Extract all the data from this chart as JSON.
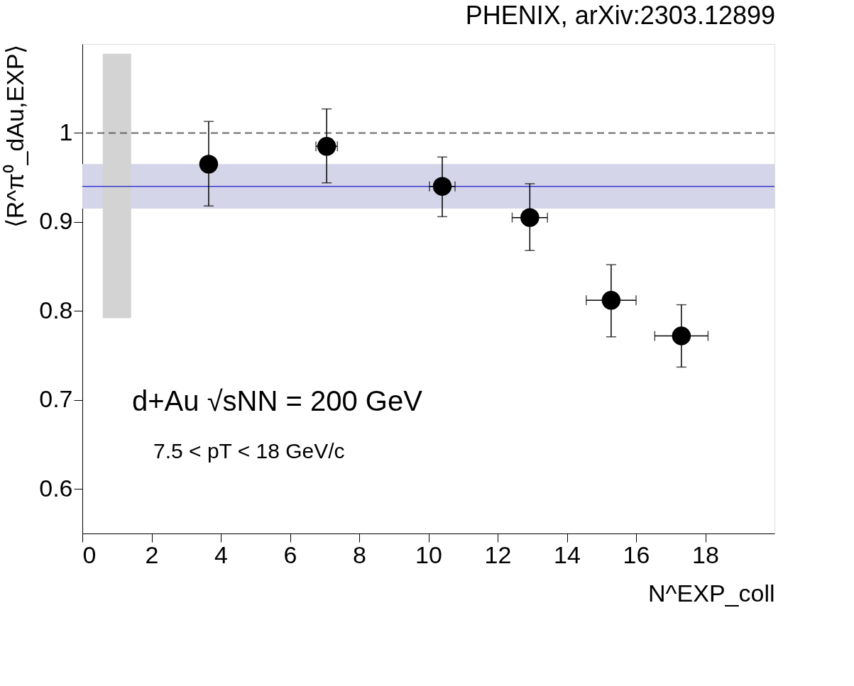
{
  "chart_data": {
    "type": "scatter",
    "title": "PHENIX, arXiv:2303.12899",
    "xlabel": "N^EXP_coll",
    "ylabel": "⟨R^π⁰_dAu,EXP⟩",
    "xlim": [
      0,
      20
    ],
    "xticks": [
      0,
      2,
      4,
      6,
      8,
      10,
      12,
      14,
      16,
      18
    ],
    "ylim": [
      0.55,
      1.1
    ],
    "yticks": [
      0.6,
      0.7,
      0.8,
      0.9,
      1
    ],
    "series": [
      {
        "type": "bar",
        "color": "#d3d3d3",
        "x": [
          1.0
        ],
        "base": [
          0.792
        ],
        "values": [
          0.297
        ]
      },
      {
        "color": "#000000",
        "x": [
          3.65,
          7.06,
          10.4,
          12.93,
          15.28,
          17.31
        ],
        "values": [
          0.965,
          0.985,
          0.94,
          0.905,
          0.812,
          0.772
        ],
        "errors": [
          [
            0.918,
            1.013
          ],
          [
            0.944,
            1.027
          ],
          [
            0.906,
            0.973
          ],
          [
            0.868,
            0.943
          ],
          [
            0.771,
            0.852
          ],
          [
            0.737,
            0.807
          ]
        ],
        "xerrors": [
          [
            3.65,
            3.65
          ],
          [
            6.75,
            7.37
          ],
          [
            10.03,
            10.77
          ],
          [
            12.42,
            13.44
          ],
          [
            14.56,
            16.0
          ],
          [
            16.54,
            18.08
          ]
        ]
      }
    ],
    "ref_lines": [
      {
        "axis": "y",
        "value": 1,
        "line_style": "dashed",
        "color": "#666666"
      },
      {
        "axis": "y",
        "value": 0.94,
        "line_style": "solid",
        "color": "#3a3ad0"
      }
    ],
    "bands": [
      {
        "axis": "y",
        "from": 0.915,
        "to": 0.965,
        "color": "#d4d5e8"
      }
    ],
    "annotations": [
      "d+Au √sNN = 200 GeV",
      "7.5 < pT < 18 GeV/c"
    ],
    "marker": "circle",
    "grid": false
  }
}
